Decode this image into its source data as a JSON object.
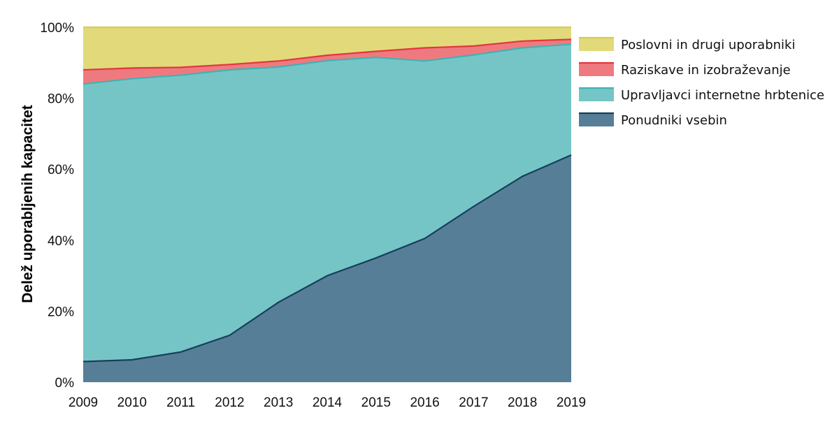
{
  "chart_data": {
    "type": "area",
    "stacked": true,
    "normalized_percent": true,
    "x": [
      "2009",
      "2010",
      "2011",
      "2012",
      "2013",
      "2014",
      "2015",
      "2016",
      "2017",
      "2018",
      "2019"
    ],
    "ylabel": "Delež uporabljenih kapacitet",
    "xlabel": "",
    "ylim": [
      0,
      100
    ],
    "yticks": [
      "0%",
      "20%",
      "40%",
      "60%",
      "80%",
      "100%"
    ],
    "grid": false,
    "legend_position": "right",
    "series": [
      {
        "name": "Ponudniki vsebin",
        "color": "#567f97",
        "line": "#163f5a",
        "values": [
          5.8,
          6.3,
          8.5,
          13.2,
          22.5,
          30.0,
          35.0,
          40.5,
          49.5,
          58.0,
          64.0
        ]
      },
      {
        "name": "Upravljavci internetne hrbtenice",
        "color": "#76c5c6",
        "line": "#3fb3b5",
        "values": [
          78.2,
          79.2,
          78.0,
          74.8,
          66.3,
          60.6,
          56.5,
          50.0,
          42.7,
          36.2,
          31.2
        ]
      },
      {
        "name": "Raziskave in izobraževanje",
        "color": "#ee7a80",
        "line": "#e1373e",
        "values": [
          4.0,
          3.0,
          2.2,
          1.5,
          1.7,
          1.5,
          1.7,
          3.7,
          2.5,
          1.9,
          1.4
        ]
      },
      {
        "name": "Poslovni in drugi uporabniki",
        "color": "#e2da7a",
        "line": "#d6cc55",
        "values": [
          12.0,
          11.5,
          11.3,
          10.5,
          9.5,
          7.9,
          6.8,
          5.8,
          5.3,
          3.9,
          3.4
        ]
      }
    ],
    "legend_order": [
      "Poslovni in drugi uporabniki",
      "Raziskave in izobraževanje",
      "Upravljavci internetne hrbtenice",
      "Ponudniki vsebin"
    ]
  }
}
